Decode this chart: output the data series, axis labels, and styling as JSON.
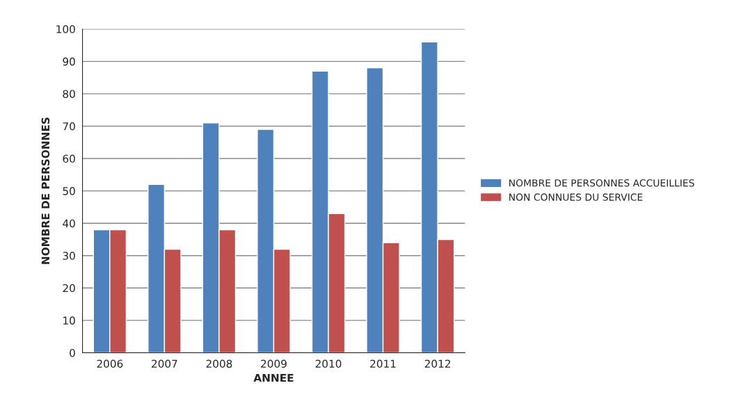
{
  "chart_data": {
    "type": "bar",
    "xlabel": "ANNEE",
    "ylabel": "NOMBRE DE PERSONNES",
    "categories": [
      "2006",
      "2007",
      "2008",
      "2009",
      "2010",
      "2011",
      "2012"
    ],
    "series": [
      {
        "name": "NOMBRE DE PERSONNES ACCUEILLIES",
        "color": "#4f81bd",
        "values": [
          38,
          52,
          71,
          69,
          87,
          88,
          96
        ]
      },
      {
        "name": "NON CONNUES DU SERVICE",
        "color": "#c0504d",
        "values": [
          38,
          32,
          38,
          32,
          43,
          34,
          35
        ]
      }
    ],
    "ylim": [
      0,
      100
    ],
    "yticks": [
      0,
      10,
      20,
      30,
      40,
      50,
      60,
      70,
      80,
      90,
      100
    ],
    "grid": "y",
    "legend": "right"
  }
}
